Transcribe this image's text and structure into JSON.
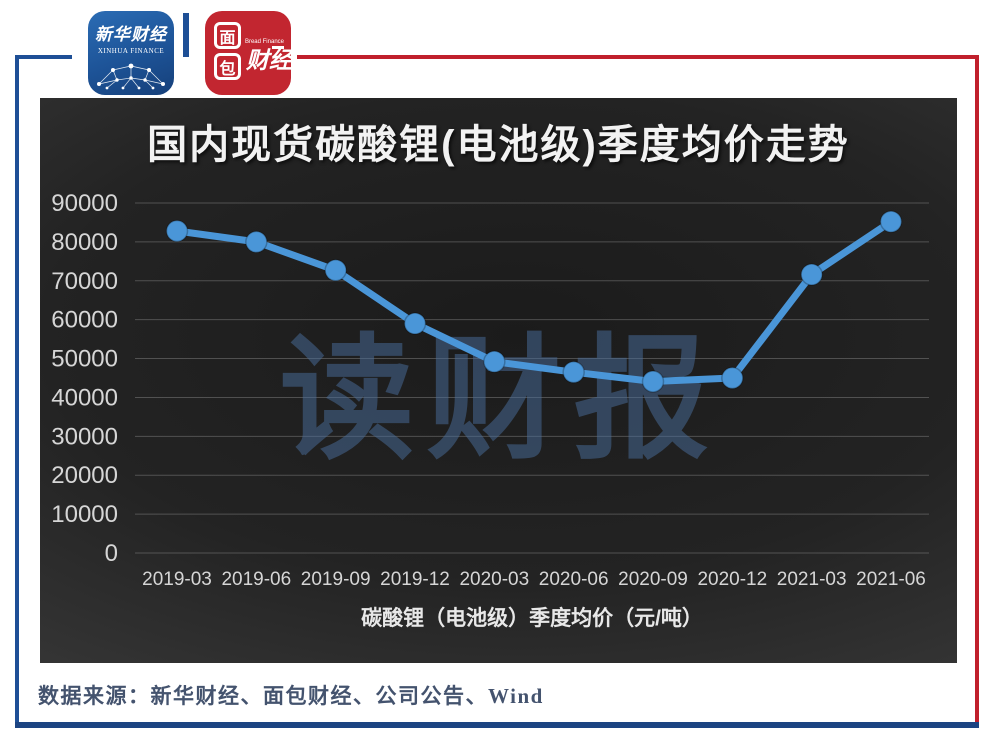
{
  "header": {
    "xinhua_logo": {
      "cn": "新华财经",
      "en": "XINHUA FINANCE"
    },
    "bread_logo": {
      "char_top": "面",
      "char_bottom": "包",
      "cn_right": "财经",
      "en": "Bread Finance"
    }
  },
  "chart_data": {
    "type": "line",
    "title": "国内现货碳酸锂(电池级)季度均价走势",
    "categories": [
      "2019-03",
      "2019-06",
      "2019-09",
      "2019-12",
      "2020-03",
      "2020-06",
      "2020-09",
      "2020-12",
      "2021-03",
      "2021-06"
    ],
    "series": [
      {
        "name": "碳酸锂（电池级）季度均价",
        "values": [
          82800,
          80000,
          72700,
          59000,
          49200,
          46500,
          44100,
          45000,
          71600,
          85200
        ]
      }
    ],
    "xlabel": "碳酸锂（电池级）季度均价（元/吨）",
    "ylabel": "",
    "ylim": [
      0,
      90000
    ],
    "yticks": [
      0,
      10000,
      20000,
      30000,
      40000,
      50000,
      60000,
      70000,
      80000,
      90000
    ],
    "grid": true,
    "legend_position": "none",
    "watermark": "读财报"
  },
  "footer": {
    "source": "数据来源：新华财经、面包财经、公司公告、Wind"
  },
  "colors": {
    "frame_blue": "#1e4f96",
    "frame_red": "#c0202c",
    "bottom_bar": "#1c4482",
    "line": "#4a96d8",
    "marker": "#4a96d8",
    "grid_line": "#a0a0a0",
    "tick_text": "#d6d6d6",
    "axis_title_text": "#e8e8e8",
    "chart_title_text": "#f2f2f2",
    "watermark_blue": "#4a6f9e",
    "source_text": "#44536e",
    "xinhua_blue": "#1d5397",
    "bread_red": "#c22630"
  }
}
